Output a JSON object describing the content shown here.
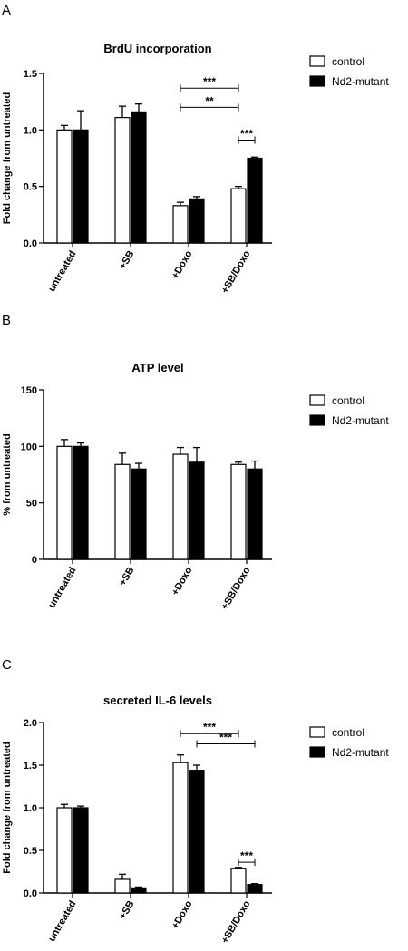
{
  "colors": {
    "control": "#ffffff",
    "mutant": "#000000",
    "stroke": "#000000"
  },
  "chart_data": [
    {
      "panel": "A",
      "type": "bar",
      "title": "BrdU incorporation",
      "ylabel": "Fold change from untreated",
      "xlabel": "",
      "ylim": [
        0,
        1.5
      ],
      "yticks": [
        0.0,
        0.5,
        1.0,
        1.5
      ],
      "tick_format": "fixed1",
      "categories": [
        "untreated",
        "+SB",
        "+Doxo",
        "+SB/Doxo"
      ],
      "series": [
        {
          "name": "control",
          "values": [
            1.0,
            1.11,
            0.33,
            0.48
          ],
          "errors": [
            0.04,
            0.1,
            0.03,
            0.02
          ]
        },
        {
          "name": "Nd2-mutant",
          "values": [
            1.0,
            1.16,
            0.39,
            0.75
          ],
          "errors": [
            0.17,
            0.07,
            0.02,
            0.01
          ]
        }
      ],
      "significance": [
        {
          "label": "***",
          "from": [
            2,
            0
          ],
          "to": [
            3,
            0
          ],
          "level": 1.37
        },
        {
          "label": "**",
          "from": [
            2,
            0
          ],
          "to": [
            3,
            0
          ],
          "level": 1.2
        },
        {
          "label": "***",
          "from": [
            3,
            0
          ],
          "to": [
            3,
            1
          ],
          "level": 0.91
        }
      ],
      "legend": "top-right",
      "grid": false
    },
    {
      "panel": "B",
      "type": "bar",
      "title": "ATP level",
      "ylabel": "% from untreated",
      "xlabel": "",
      "ylim": [
        0,
        150
      ],
      "yticks": [
        0,
        50,
        100,
        150
      ],
      "tick_format": "int",
      "categories": [
        "untreated",
        "+SB",
        "+Doxo",
        "+SB/Doxo"
      ],
      "series": [
        {
          "name": "control",
          "values": [
            100,
            84,
            93,
            84
          ],
          "errors": [
            6,
            10,
            6,
            2
          ]
        },
        {
          "name": "Nd2-mutant",
          "values": [
            100,
            80,
            86,
            80
          ],
          "errors": [
            3,
            5,
            13,
            7
          ]
        }
      ],
      "significance": [],
      "legend": "top-right",
      "grid": false
    },
    {
      "panel": "C",
      "type": "bar",
      "title": "secreted IL-6 levels",
      "ylabel": "Fold change from untreated",
      "xlabel": "",
      "ylim": [
        0,
        2.0
      ],
      "yticks": [
        0.0,
        0.5,
        1.0,
        1.5,
        2.0
      ],
      "tick_format": "fixed1",
      "categories": [
        "untreated",
        "+SB",
        "+Doxo",
        "+SB/Doxo"
      ],
      "series": [
        {
          "name": "control",
          "values": [
            1.0,
            0.16,
            1.53,
            0.29
          ],
          "errors": [
            0.04,
            0.06,
            0.09,
            0.01
          ]
        },
        {
          "name": "Nd2-mutant",
          "values": [
            1.0,
            0.06,
            1.44,
            0.1
          ],
          "errors": [
            0.02,
            0.01,
            0.06,
            0.01
          ]
        }
      ],
      "significance": [
        {
          "label": "***",
          "from": [
            2,
            0
          ],
          "to": [
            3,
            0
          ],
          "level": 1.87
        },
        {
          "label": "***",
          "from": [
            2,
            1
          ],
          "to": [
            3,
            1
          ],
          "level": 1.75
        },
        {
          "label": "***",
          "from": [
            3,
            0
          ],
          "to": [
            3,
            1
          ],
          "level": 0.36
        }
      ],
      "legend": "top-right",
      "grid": false
    }
  ]
}
